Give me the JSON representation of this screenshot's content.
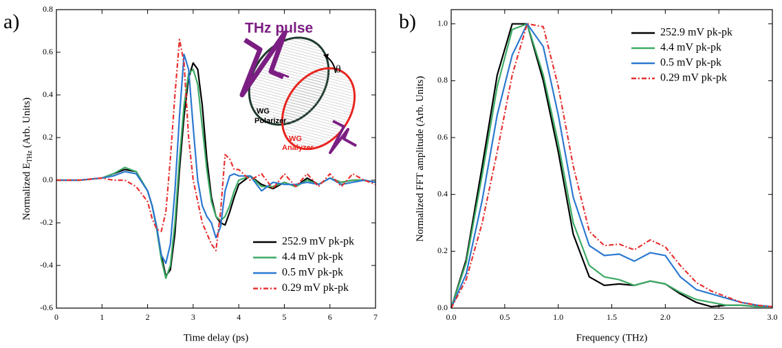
{
  "chart_data": [
    {
      "type": "line",
      "panel_label": "a)",
      "xlabel": "Time delay (ps)",
      "ylabel": [
        "Normalized E",
        "THz",
        " (Arb. Units)"
      ],
      "xlim": [
        0,
        7
      ],
      "ylim": [
        -0.6,
        0.8
      ],
      "xticks": [
        0,
        1,
        2,
        3,
        4,
        5,
        6,
        7
      ],
      "yticks": [
        -0.6,
        -0.4,
        -0.2,
        {
          "value": 0,
          "label": "0.0"
        },
        0.2,
        0.4,
        0.6,
        0.8
      ],
      "legend": "lower right",
      "annotations": [
        "THz pulse",
        "θ",
        "WG",
        "Polarizer",
        "WG",
        "Analyzer"
      ],
      "x": [
        0,
        0.5,
        1.0,
        1.25,
        1.5,
        1.75,
        2.0,
        2.1,
        2.2,
        2.3,
        2.4,
        2.5,
        2.6,
        2.7,
        2.8,
        2.9,
        3.0,
        3.1,
        3.2,
        3.3,
        3.4,
        3.5,
        3.6,
        3.7,
        3.8,
        3.9,
        4.0,
        4.25,
        4.5,
        4.75,
        5.0,
        5.25,
        5.5,
        5.75,
        6.0,
        6.25,
        6.5,
        6.75,
        7.0
      ],
      "series": [
        {
          "name": "252.9 mV pk-pk",
          "color": "#000000",
          "dash": "solid",
          "values": [
            0,
            0,
            0.01,
            0.03,
            0.05,
            0.04,
            -0.05,
            -0.12,
            -0.22,
            -0.35,
            -0.45,
            -0.42,
            -0.25,
            0.05,
            0.3,
            0.48,
            0.55,
            0.52,
            0.35,
            0.1,
            -0.08,
            -0.17,
            -0.2,
            -0.21,
            -0.15,
            -0.08,
            -0.02,
            0.02,
            -0.02,
            -0.04,
            -0.01,
            -0.03,
            0.01,
            -0.02,
            0.01,
            -0.01,
            0,
            0,
            -0.01
          ]
        },
        {
          "name": "4.4 mV pk-pk",
          "color": "#3caa64",
          "dash": "solid",
          "values": [
            0,
            0,
            0.01,
            0.03,
            0.06,
            0.04,
            -0.05,
            -0.12,
            -0.23,
            -0.37,
            -0.46,
            -0.4,
            -0.2,
            0.1,
            0.35,
            0.5,
            0.52,
            0.45,
            0.25,
            0.05,
            -0.1,
            -0.17,
            -0.19,
            -0.17,
            -0.12,
            -0.05,
            0,
            0.02,
            -0.03,
            -0.03,
            -0.01,
            -0.03,
            0,
            -0.02,
            0.01,
            -0.01,
            0,
            0,
            -0.01
          ]
        },
        {
          "name": "0.5 mV pk-pk",
          "color": "#2a78d0",
          "dash": "solid",
          "values": [
            0,
            0,
            0.01,
            0.02,
            0.04,
            0.03,
            -0.05,
            -0.12,
            -0.22,
            -0.35,
            -0.39,
            -0.3,
            -0.05,
            0.3,
            0.59,
            0.52,
            0.25,
            0,
            -0.12,
            -0.17,
            -0.2,
            -0.27,
            -0.22,
            -0.05,
            0.02,
            0.03,
            0.02,
            0.02,
            -0.05,
            -0.01,
            -0.02,
            -0.02,
            -0.01,
            -0.02,
            0.01,
            -0.02,
            -0.01,
            0,
            -0.01
          ]
        },
        {
          "name": "0.29 mV pk-pk",
          "color": "#e83030",
          "dash": "dashdot",
          "values": [
            0,
            0,
            0.01,
            0,
            0,
            -0.03,
            -0.1,
            -0.18,
            -0.23,
            -0.24,
            -0.15,
            0.1,
            0.4,
            0.66,
            0.55,
            0.2,
            0,
            -0.1,
            -0.2,
            -0.25,
            -0.3,
            -0.33,
            -0.15,
            0.12,
            0.1,
            0.05,
            0.05,
            0,
            0.03,
            -0.04,
            0.03,
            -0.03,
            0.03,
            -0.03,
            0.03,
            -0.03,
            0.03,
            0,
            -0.02
          ]
        }
      ]
    },
    {
      "type": "line",
      "panel_label": "b)",
      "xlabel": "Frequency (THz)",
      "ylabel": [
        "Normalized FFT amplitude (Arb. Units)"
      ],
      "xlim": [
        0,
        3
      ],
      "ylim": [
        0,
        1.05
      ],
      "xticks": [
        {
          "value": 0,
          "label": "0.0"
        },
        0.5,
        {
          "value": 1,
          "label": "1.0"
        },
        1.5,
        {
          "value": 2,
          "label": "2.0"
        },
        2.5,
        {
          "value": 3,
          "label": "3.0"
        }
      ],
      "yticks": [
        {
          "value": 0,
          "label": "0.0"
        },
        0.2,
        0.4,
        0.6,
        0.8,
        {
          "value": 1,
          "label": "1.0"
        }
      ],
      "legend": "upper right",
      "x": [
        0,
        0.14,
        0.29,
        0.43,
        0.57,
        0.71,
        0.86,
        1.0,
        1.14,
        1.29,
        1.43,
        1.57,
        1.71,
        1.86,
        2.0,
        2.14,
        2.29,
        2.43,
        2.57,
        2.71,
        2.86,
        3.0
      ],
      "series": [
        {
          "name": "252.9 mV pk-pk",
          "color": "#000000",
          "dash": "solid",
          "values": [
            0,
            0.17,
            0.5,
            0.82,
            1.0,
            1.0,
            0.8,
            0.55,
            0.26,
            0.11,
            0.08,
            0.085,
            0.08,
            0.095,
            0.085,
            0.05,
            0.02,
            0.005,
            0.01,
            0.01,
            0.005,
            0.005
          ]
        },
        {
          "name": "4.4 mV pk-pk",
          "color": "#3caa64",
          "dash": "solid",
          "values": [
            0,
            0.16,
            0.47,
            0.78,
            0.98,
            1.0,
            0.82,
            0.58,
            0.3,
            0.15,
            0.11,
            0.1,
            0.08,
            0.095,
            0.085,
            0.055,
            0.03,
            0.02,
            0.01,
            0.01,
            0.005,
            0.005
          ]
        },
        {
          "name": "0.5 mV pk-pk",
          "color": "#2a78d0",
          "dash": "solid",
          "values": [
            0,
            0.12,
            0.38,
            0.68,
            0.89,
            1.0,
            0.92,
            0.68,
            0.39,
            0.22,
            0.185,
            0.19,
            0.165,
            0.195,
            0.185,
            0.11,
            0.065,
            0.05,
            0.035,
            0.02,
            0.01,
            0.005
          ]
        },
        {
          "name": "0.29 mV pk-pk",
          "color": "#e83030",
          "dash": "dashdot",
          "values": [
            0,
            0.1,
            0.3,
            0.55,
            0.82,
            1.0,
            0.99,
            0.78,
            0.5,
            0.27,
            0.22,
            0.225,
            0.205,
            0.24,
            0.215,
            0.15,
            0.09,
            0.06,
            0.04,
            0.02,
            0.01,
            0.005
          ]
        }
      ]
    }
  ]
}
